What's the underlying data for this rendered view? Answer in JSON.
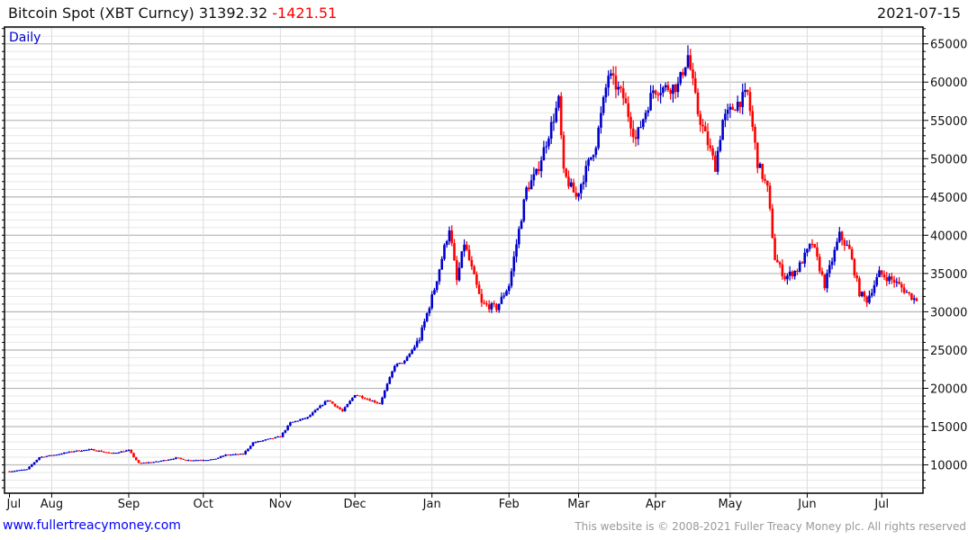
{
  "header": {
    "title": "Bitcoin Spot (XBT Curncy)",
    "last": "31392.32",
    "change": "-1421.51",
    "date": "2021-07-15"
  },
  "footer": {
    "link": "www.fullertreacymoney.com",
    "copyright": "This website is © 2008-2021 Fuller Treacy Money plc. All rights reserved"
  },
  "colors": {
    "up": "#0000cc",
    "down": "#ff0000",
    "grid_major": "#bbbbbb",
    "grid_minor": "#e6e6e6"
  },
  "chart_data": {
    "type": "candlestick",
    "title": "Bitcoin Spot (XBT Curncy)",
    "period_label": "Daily",
    "start_date": "2020-07-15",
    "end_date": "2021-07-15",
    "ylim": [
      6300,
      67200
    ],
    "yticks": [
      10000,
      15000,
      20000,
      25000,
      30000,
      35000,
      40000,
      45000,
      50000,
      55000,
      60000,
      65000
    ],
    "ytick_labels": [
      "10000",
      "15000",
      "20000",
      "25000",
      "30000",
      "35000",
      "40000",
      "45000",
      "50000",
      "55000",
      "60000",
      "65000"
    ],
    "xticks": [
      {
        "date": "2020-07-15",
        "label": "Jul"
      },
      {
        "date": "2020-08-01",
        "label": "Aug"
      },
      {
        "date": "2020-09-01",
        "label": "Sep"
      },
      {
        "date": "2020-10-01",
        "label": "Oct"
      },
      {
        "date": "2020-11-01",
        "label": "Nov"
      },
      {
        "date": "2020-12-01",
        "label": "Dec"
      },
      {
        "date": "2021-01-01",
        "label": "Jan"
      },
      {
        "date": "2021-02-01",
        "label": "Feb"
      },
      {
        "date": "2021-03-01",
        "label": "Mar"
      },
      {
        "date": "2021-04-01",
        "label": "Apr"
      },
      {
        "date": "2021-05-01",
        "label": "May"
      },
      {
        "date": "2021-06-01",
        "label": "Jun"
      },
      {
        "date": "2021-07-01",
        "label": "Jul"
      }
    ],
    "approx_closes": [
      [
        "2020-07-15",
        9150
      ],
      [
        "2020-07-22",
        9400
      ],
      [
        "2020-07-27",
        11000
      ],
      [
        "2020-08-02",
        11300
      ],
      [
        "2020-08-10",
        11800
      ],
      [
        "2020-08-17",
        12000
      ],
      [
        "2020-08-25",
        11500
      ],
      [
        "2020-09-01",
        11900
      ],
      [
        "2020-09-05",
        10200
      ],
      [
        "2020-09-12",
        10400
      ],
      [
        "2020-09-20",
        10900
      ],
      [
        "2020-09-25",
        10600
      ],
      [
        "2020-10-05",
        10700
      ],
      [
        "2020-10-10",
        11300
      ],
      [
        "2020-10-17",
        11400
      ],
      [
        "2020-10-21",
        12900
      ],
      [
        "2020-11-01",
        13700
      ],
      [
        "2020-11-05",
        15500
      ],
      [
        "2020-11-12",
        16200
      ],
      [
        "2020-11-20",
        18500
      ],
      [
        "2020-11-26",
        17000
      ],
      [
        "2020-12-01",
        19200
      ],
      [
        "2020-12-11",
        18000
      ],
      [
        "2020-12-17",
        23000
      ],
      [
        "2020-12-21",
        23500
      ],
      [
        "2020-12-27",
        26500
      ],
      [
        "2021-01-02",
        33000
      ],
      [
        "2021-01-08",
        41000
      ],
      [
        "2021-01-11",
        34000
      ],
      [
        "2021-01-14",
        39000
      ],
      [
        "2021-01-21",
        31000
      ],
      [
        "2021-01-27",
        30500
      ],
      [
        "2021-02-01",
        33500
      ],
      [
        "2021-02-08",
        46000
      ],
      [
        "2021-02-12",
        48000
      ],
      [
        "2021-02-21",
        57500
      ],
      [
        "2021-02-23",
        48000
      ],
      [
        "2021-02-28",
        45000
      ],
      [
        "2021-03-08",
        52000
      ],
      [
        "2021-03-13",
        61000
      ],
      [
        "2021-03-19",
        58000
      ],
      [
        "2021-03-24",
        52500
      ],
      [
        "2021-03-31",
        59000
      ],
      [
        "2021-04-10",
        59500
      ],
      [
        "2021-04-14",
        63500
      ],
      [
        "2021-04-18",
        56000
      ],
      [
        "2021-04-25",
        49000
      ],
      [
        "2021-04-28",
        55000
      ],
      [
        "2021-05-03",
        57000
      ],
      [
        "2021-05-08",
        58500
      ],
      [
        "2021-05-12",
        49500
      ],
      [
        "2021-05-16",
        46000
      ],
      [
        "2021-05-19",
        37000
      ],
      [
        "2021-05-23",
        34500
      ],
      [
        "2021-05-28",
        35500
      ],
      [
        "2021-06-03",
        39000
      ],
      [
        "2021-06-08",
        33500
      ],
      [
        "2021-06-14",
        40000
      ],
      [
        "2021-06-18",
        38000
      ],
      [
        "2021-06-22",
        32500
      ],
      [
        "2021-06-25",
        31500
      ],
      [
        "2021-06-30",
        35000
      ],
      [
        "2021-07-06",
        34000
      ],
      [
        "2021-07-15",
        31392
      ]
    ]
  }
}
